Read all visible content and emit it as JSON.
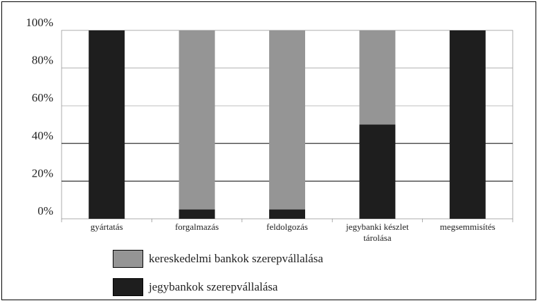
{
  "chart_data": {
    "type": "bar",
    "stacked": true,
    "percent": true,
    "categories": [
      "gyártatás",
      "forgalmazás",
      "feldolgozás",
      "jegybanki készlet tárolása",
      "megsemmisítés"
    ],
    "category_lines": [
      [
        "gyártatás"
      ],
      [
        "forgalmazás"
      ],
      [
        "feldolgozás"
      ],
      [
        "jegybanki készlet",
        "tárolása"
      ],
      [
        "megsemmisítés"
      ]
    ],
    "series": [
      {
        "name": "jegybankok szerepvállalása",
        "values": [
          100,
          5,
          5,
          50,
          100
        ],
        "color": "#1e1e1e"
      },
      {
        "name": "kereskedelmi bankok szerepvállalása",
        "values": [
          0,
          95,
          95,
          50,
          0
        ],
        "color": "#959595"
      }
    ],
    "ylim": [
      0,
      100
    ],
    "yticks": [
      "0%",
      "20%",
      "40%",
      "60%",
      "80%",
      "100%"
    ],
    "legend_order": [
      "kereskedelmi bankok szerepvállalása",
      "jegybankok szerepvállalása"
    ],
    "grid": true
  }
}
